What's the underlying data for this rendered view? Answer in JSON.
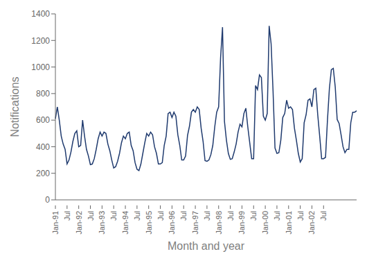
{
  "chart_data": {
    "type": "line",
    "xlabel": "Month and year",
    "ylabel": "Notifications",
    "color": "#1F3A6E",
    "ylim": [
      0,
      1400
    ],
    "yticks": [
      0,
      200,
      400,
      600,
      800,
      1000,
      1200,
      1400
    ],
    "grid": false,
    "categories": [
      "Jan-91",
      null,
      null,
      null,
      null,
      null,
      "Jul",
      null,
      null,
      null,
      null,
      null,
      "Jan-92",
      null,
      null,
      null,
      null,
      null,
      "Jul",
      null,
      null,
      null,
      null,
      null,
      "Jan-93",
      null,
      null,
      null,
      null,
      null,
      "Jul",
      null,
      null,
      null,
      null,
      null,
      "Jan-94",
      null,
      null,
      null,
      null,
      null,
      "Jul",
      null,
      null,
      null,
      null,
      null,
      "Jan-95",
      null,
      null,
      null,
      null,
      null,
      "Jul",
      null,
      null,
      null,
      null,
      null,
      "Jan-96",
      null,
      null,
      null,
      null,
      null,
      "Jul",
      null,
      null,
      null,
      null,
      null,
      "Jan-97",
      null,
      null,
      null,
      null,
      null,
      "Jul",
      null,
      null,
      null,
      null,
      null,
      "Jan-98",
      null,
      null,
      null,
      null,
      null,
      "Jul",
      null,
      null,
      null,
      null,
      null,
      "Jan-99",
      null,
      null,
      null,
      null,
      null,
      "Jul",
      null,
      null,
      null,
      null,
      null,
      "Jan-00",
      null,
      null,
      null,
      null,
      null,
      "Jul",
      null,
      null,
      null,
      null,
      null,
      "Jan-01",
      null,
      null,
      null,
      null,
      null,
      "Jul",
      null,
      null,
      null,
      null,
      null,
      "Jan-02",
      null,
      null,
      null,
      null,
      null,
      "Jul",
      null,
      null,
      null,
      null,
      null,
      null,
      null,
      null,
      null,
      null,
      null,
      null,
      null,
      null,
      null,
      null,
      null
    ],
    "values": [
      610,
      700,
      600,
      480,
      420,
      380,
      270,
      300,
      360,
      440,
      500,
      520,
      400,
      410,
      600,
      480,
      380,
      330,
      265,
      270,
      310,
      380,
      460,
      510,
      480,
      510,
      500,
      420,
      370,
      300,
      240,
      250,
      290,
      350,
      430,
      480,
      460,
      500,
      510,
      410,
      370,
      280,
      230,
      220,
      270,
      350,
      430,
      500,
      480,
      510,
      490,
      400,
      350,
      270,
      270,
      280,
      410,
      480,
      650,
      660,
      620,
      660,
      630,
      490,
      410,
      300,
      300,
      330,
      485,
      555,
      660,
      680,
      660,
      700,
      680,
      540,
      440,
      295,
      290,
      300,
      340,
      410,
      550,
      660,
      700,
      1070,
      1300,
      590,
      450,
      350,
      305,
      310,
      360,
      420,
      510,
      570,
      550,
      650,
      690,
      550,
      430,
      310,
      310,
      860,
      830,
      940,
      920,
      630,
      600,
      650,
      1310,
      1175,
      820,
      390,
      350,
      355,
      450,
      620,
      650,
      750,
      690,
      700,
      680,
      540,
      450,
      350,
      285,
      310,
      580,
      640,
      750,
      760,
      700,
      830,
      840,
      640,
      480,
      310,
      310,
      320,
      600,
      840,
      980,
      990,
      850,
      605,
      575,
      490,
      400,
      355,
      380,
      380,
      580,
      660,
      660,
      670
    ]
  }
}
